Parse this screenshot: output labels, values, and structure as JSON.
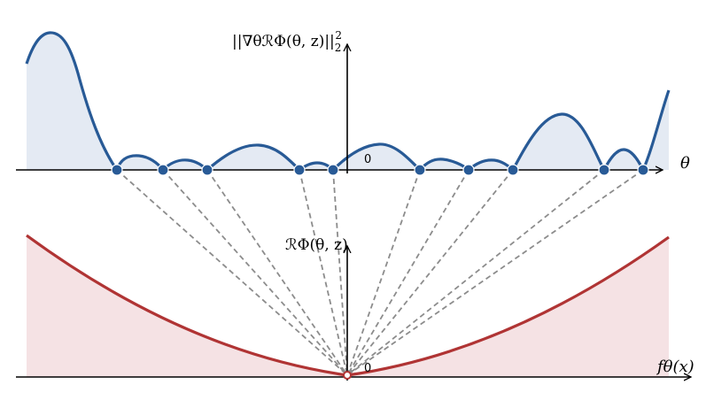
{
  "top_panel": {
    "y_label": "||∇θℛΦ(θ, z)||",
    "y_label_sub": "2",
    "y_label_sup": "2",
    "x_label": "θ",
    "origin_label": "0"
  },
  "bottom_panel": {
    "y_label": "ℛΦ(θ, z)",
    "x_label": "fθ(x)",
    "origin_label": "0"
  },
  "colors": {
    "top_curve": "#285a96",
    "top_fill": "#e4eaf3",
    "bottom_curve": "#b03434",
    "bottom_fill": "#f5e2e4",
    "dashes": "#8c8c8c",
    "critical_point": "#285a96",
    "min_point": "#b03434"
  }
}
